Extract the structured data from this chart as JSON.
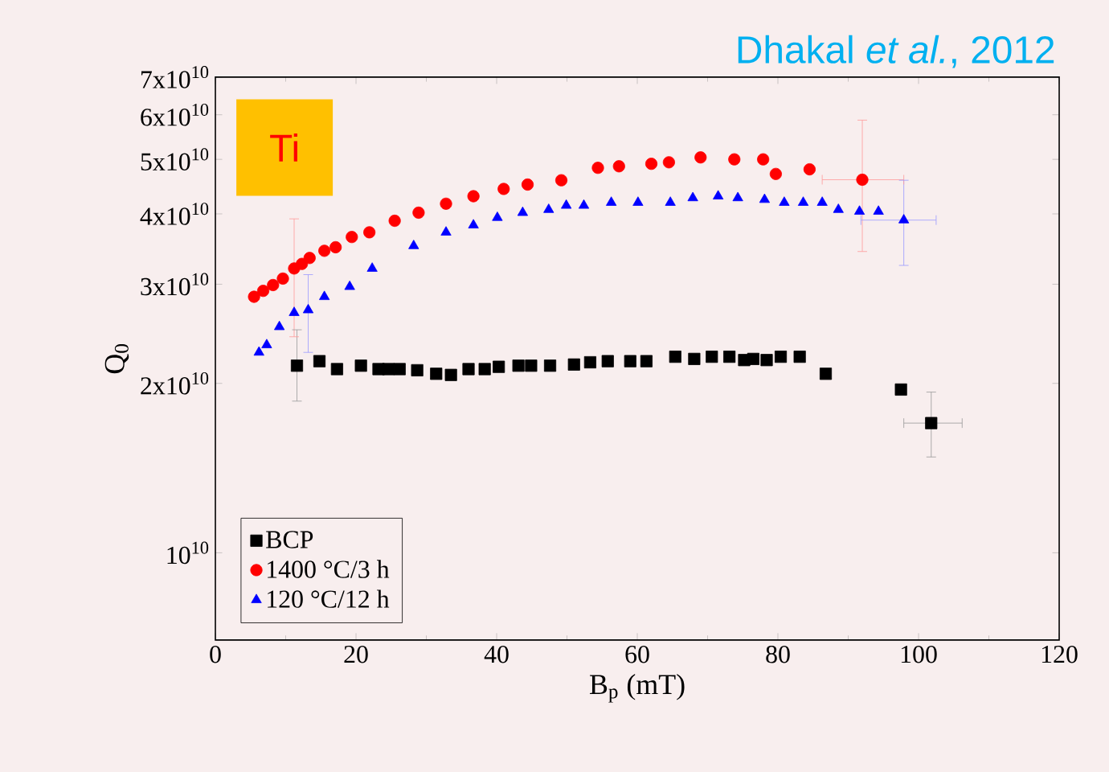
{
  "chart_data": {
    "type": "scatter",
    "xlabel": "B$_{p}$ (mT)",
    "ylabel": "Q$_{0}$",
    "xlim": [
      0,
      120
    ],
    "xticks": [
      0,
      20,
      40,
      60,
      80,
      100,
      120
    ],
    "ylim": [
      7000000000.0,
      70000000000.0
    ],
    "log": "y",
    "yticks": [
      {
        "value": 10000000000.0,
        "label": "10$^{10}$"
      },
      {
        "value": 20000000000.0,
        "label": "2x10$^{10}$"
      },
      {
        "value": 30000000000.0,
        "label": "3x10$^{10}$"
      },
      {
        "value": 40000000000.0,
        "label": "4x10$^{10}$"
      },
      {
        "value": 50000000000.0,
        "label": "5x10$^{10}$"
      },
      {
        "value": 60000000000.0,
        "label": "6x10$^{10}$"
      },
      {
        "value": 70000000000.0,
        "label": "7x10$^{10}$"
      }
    ],
    "legend": "bottom left",
    "annotations": [
      "Ti",
      "Dhakal *et al.*, 2012"
    ],
    "series": [
      {
        "name": "BCP",
        "color": "#000000",
        "marker": "square",
        "x": [
          11.6,
          14.8,
          17.3,
          20.7,
          23.2,
          24.6,
          26.2,
          28.7,
          31.4,
          33.5,
          36.0,
          38.3,
          40.3,
          43.1,
          44.9,
          47.6,
          51.0,
          53.3,
          55.8,
          59.0,
          61.3,
          65.4,
          68.1,
          70.6,
          73.1,
          75.2,
          76.5,
          78.4,
          80.4,
          83.1,
          86.8,
          97.5,
          101.8
        ],
        "values": [
          21500000000.0,
          21900000000.0,
          21200000000.0,
          21500000000.0,
          21200000000.0,
          21200000000.0,
          21200000000.0,
          21100000000.0,
          20800000000.0,
          20700000000.0,
          21200000000.0,
          21200000000.0,
          21400000000.0,
          21500000000.0,
          21500000000.0,
          21500000000.0,
          21600000000.0,
          21800000000.0,
          21900000000.0,
          21900000000.0,
          21900000000.0,
          22300000000.0,
          22100000000.0,
          22300000000.0,
          22300000000.0,
          22000000000.0,
          22100000000.0,
          22000000000.0,
          22300000000.0,
          22300000000.0,
          20800000000.0,
          19500000000.0,
          17000000000.0
        ],
        "errors": [
          [
            18600000000.0,
            24900000000.0
          ],
          null,
          null,
          null,
          null,
          null,
          null,
          null,
          null,
          null,
          null,
          null,
          null,
          null,
          null,
          null,
          null,
          null,
          null,
          null,
          null,
          null,
          null,
          null,
          null,
          null,
          null,
          null,
          null,
          null,
          null,
          null,
          [
            14800000000.0,
            19300000000.0
          ]
        ],
        "xerrors": [
          null,
          null,
          null,
          null,
          null,
          null,
          null,
          null,
          null,
          null,
          null,
          null,
          null,
          null,
          null,
          null,
          null,
          null,
          null,
          null,
          null,
          null,
          null,
          null,
          null,
          null,
          null,
          null,
          null,
          null,
          null,
          null,
          [
            97.9,
            106.2
          ]
        ]
      },
      {
        "name": "1400 °C/3 h",
        "color": "#ff0000",
        "marker": "circle",
        "x": [
          5.5,
          6.8,
          8.2,
          9.6,
          11.2,
          12.3,
          13.4,
          15.5,
          17.1,
          19.4,
          21.9,
          25.5,
          28.9,
          32.8,
          36.7,
          41.0,
          44.4,
          49.2,
          54.4,
          57.4,
          62.0,
          64.5,
          69.0,
          73.8,
          77.9,
          79.7,
          84.5,
          92.0
        ],
        "values": [
          28500000000.0,
          29200000000.0,
          29900000000.0,
          30700000000.0,
          32000000000.0,
          32600000000.0,
          33400000000.0,
          34400000000.0,
          34900000000.0,
          36400000000.0,
          37100000000.0,
          38900000000.0,
          40200000000.0,
          41700000000.0,
          43000000000.0,
          44300000000.0,
          45100000000.0,
          45900000000.0,
          48300000000.0,
          48600000000.0,
          49100000000.0,
          49400000000.0,
          50400000000.0,
          50000000000.0,
          50000000000.0,
          47100000000.0,
          48000000000.0,
          46000000000.0
        ],
        "errors": [
          null,
          null,
          null,
          null,
          [
            24200000000.0,
            39200000000.0
          ],
          null,
          null,
          null,
          null,
          null,
          null,
          null,
          null,
          null,
          null,
          null,
          null,
          null,
          null,
          null,
          null,
          null,
          null,
          null,
          null,
          null,
          null,
          [
            34300000000.0,
            58700000000.0
          ]
        ],
        "xerrors": [
          null,
          null,
          null,
          null,
          null,
          null,
          null,
          null,
          null,
          null,
          null,
          null,
          null,
          null,
          null,
          null,
          null,
          null,
          null,
          null,
          null,
          null,
          null,
          null,
          null,
          null,
          null,
          [
            86.3,
            97.9
          ]
        ]
      },
      {
        "name": "120 °C/12 h",
        "color": "#0000ff",
        "marker": "triangle",
        "x": [
          6.2,
          7.3,
          9.1,
          11.2,
          13.2,
          15.5,
          19.1,
          22.3,
          28.2,
          32.8,
          36.7,
          40.1,
          43.7,
          47.4,
          49.9,
          52.4,
          56.3,
          60.1,
          64.7,
          67.9,
          71.5,
          74.3,
          78.1,
          80.9,
          83.6,
          86.3,
          88.6,
          91.6,
          94.3,
          97.9
        ],
        "values": [
          22700000000.0,
          23400000000.0,
          25200000000.0,
          26700000000.0,
          27000000000.0,
          28500000000.0,
          29700000000.0,
          32000000000.0,
          35100000000.0,
          37100000000.0,
          38200000000.0,
          39400000000.0,
          40200000000.0,
          40700000000.0,
          41400000000.0,
          41400000000.0,
          41900000000.0,
          41900000000.0,
          41900000000.0,
          42700000000.0,
          43000000000.0,
          42700000000.0,
          42400000000.0,
          41900000000.0,
          41900000000.0,
          41900000000.0,
          40700000000.0,
          40400000000.0,
          40400000000.0,
          39000000000.0
        ],
        "errors": [
          null,
          null,
          null,
          null,
          [
            22700000000.0,
            31200000000.0
          ],
          null,
          null,
          null,
          null,
          null,
          null,
          null,
          null,
          null,
          null,
          null,
          null,
          null,
          null,
          null,
          null,
          null,
          null,
          null,
          null,
          null,
          null,
          null,
          null,
          [
            32400000000.0,
            45900000000.0
          ]
        ],
        "xerrors": [
          null,
          null,
          null,
          null,
          null,
          null,
          null,
          null,
          null,
          null,
          null,
          null,
          null,
          null,
          null,
          null,
          null,
          null,
          null,
          null,
          null,
          null,
          null,
          null,
          null,
          null,
          null,
          null,
          null,
          [
            91.8,
            102.5
          ]
        ]
      }
    ]
  }
}
